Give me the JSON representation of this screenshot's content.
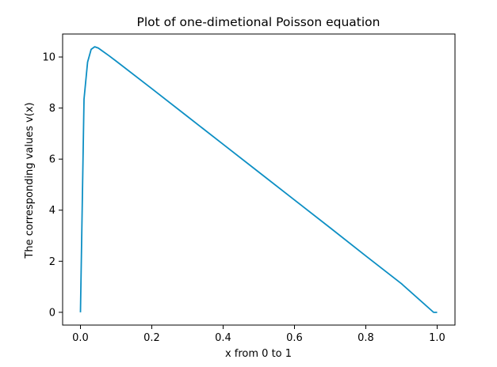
{
  "chart_data": {
    "type": "line",
    "title": "Plot of one-dimetional Poisson equation",
    "xlabel": "x from 0 to 1",
    "ylabel": "The corresponding values v(x)",
    "xlim": [
      -0.05,
      1.05
    ],
    "ylim": [
      -0.5,
      10.9
    ],
    "xticks": [
      0.0,
      0.2,
      0.4,
      0.6,
      0.8,
      1.0
    ],
    "xtick_labels": [
      "0.0",
      "0.2",
      "0.4",
      "0.6",
      "0.8",
      "1.0"
    ],
    "yticks": [
      0,
      2,
      4,
      6,
      8,
      10
    ],
    "ytick_labels": [
      "0",
      "2",
      "4",
      "6",
      "8",
      "10"
    ],
    "grid": false,
    "legend": "none",
    "series": [
      {
        "color": "#0d8fc4",
        "x": [
          0.0,
          0.01,
          0.02,
          0.03,
          0.04,
          0.05,
          0.06,
          0.08,
          0.1,
          0.2,
          0.3,
          0.4,
          0.5,
          0.6,
          0.7,
          0.8,
          0.9,
          0.99,
          1.0
        ],
        "y": [
          0.0,
          8.35,
          9.8,
          10.3,
          10.4,
          10.35,
          10.25,
          10.05,
          9.84,
          8.76,
          7.67,
          6.58,
          5.49,
          4.4,
          3.31,
          2.21,
          1.12,
          0.0,
          0.0
        ]
      }
    ]
  }
}
